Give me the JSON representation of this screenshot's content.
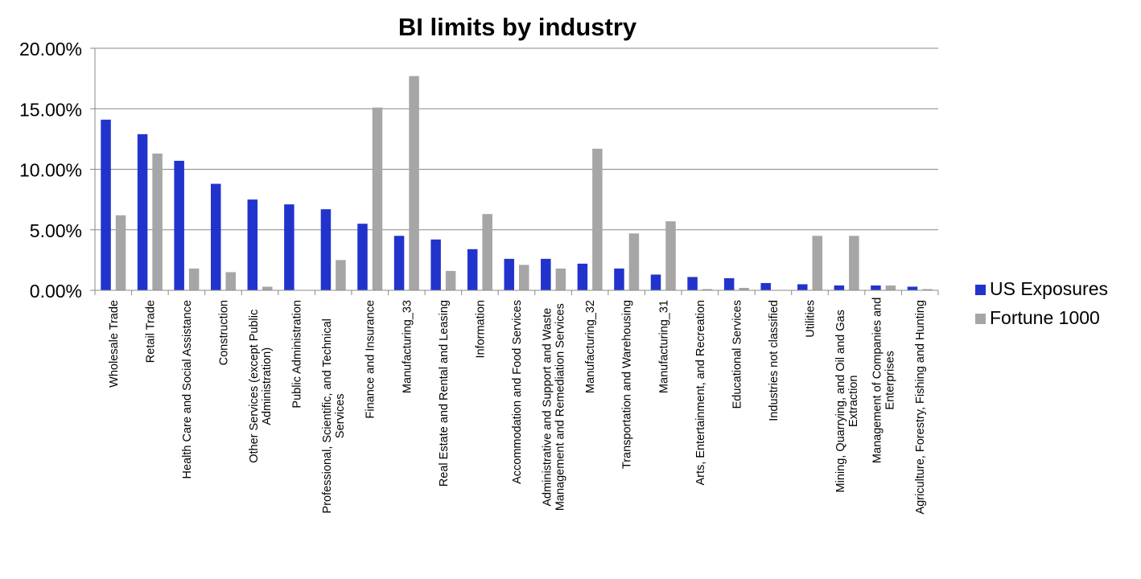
{
  "chart_data": {
    "type": "bar",
    "title": "BI limits by industry",
    "xlabel": "",
    "ylabel": "",
    "ylim": [
      0,
      0.2
    ],
    "yticks": [
      0,
      0.05,
      0.1,
      0.15,
      0.2
    ],
    "ytick_labels": [
      "0.00%",
      "5.00%",
      "10.00%",
      "15.00%",
      "20.00%"
    ],
    "grid": true,
    "legend_position": "right",
    "categories": [
      "Wholesale Trade",
      "Retail Trade",
      "Health Care and Social Assistance",
      "Construction",
      "Other Services (except Public Administration)",
      "Public Administration",
      "Professional, Scientific, and Technical Services",
      "Finance and Insurance",
      "Manufacturing_33",
      "Real Estate and Rental and Leasing",
      "Information",
      "Accommodation and Food Services",
      "Administrative and Support and Waste Management and Remediation Services",
      "Manufacturing_32",
      "Transportation and Warehousing",
      "Manufacturing_31",
      "Arts, Entertainment, and Recreation",
      "Educational Services",
      "Industries not classified",
      "Utilities",
      "Mining, Quarrying, and Oil and Gas Extraction",
      "Management of Companies and Enterprises",
      "Agriculture, Forestry, Fishing and Hunting"
    ],
    "category_label_lines": [
      [
        "Wholesale Trade"
      ],
      [
        "Retail Trade"
      ],
      [
        "Health Care and Social Assistance"
      ],
      [
        "Construction"
      ],
      [
        "Other Services (except Public",
        "Administration)"
      ],
      [
        "Public Administration"
      ],
      [
        "Professional, Scientific, and Technical",
        "Services"
      ],
      [
        "Finance and Insurance"
      ],
      [
        "Manufacturing_33"
      ],
      [
        "Real Estate and Rental and Leasing"
      ],
      [
        "Information"
      ],
      [
        "Accommodation and Food Services"
      ],
      [
        "Administrative and Support and Waste",
        "Management and Remediation Services"
      ],
      [
        "Manufacturing_32"
      ],
      [
        "Transportation and Warehousing"
      ],
      [
        "Manufacturing_31"
      ],
      [
        "Arts, Entertainment, and Recreation"
      ],
      [
        "Educational Services"
      ],
      [
        "Industries not classified"
      ],
      [
        "Utilities"
      ],
      [
        "Mining, Quarrying, and Oil and Gas",
        "Extraction"
      ],
      [
        "Management of Companies and",
        "Enterprises"
      ],
      [
        "Agriculture, Forestry, Fishing and Hunting"
      ]
    ],
    "series": [
      {
        "name": "US Exposures",
        "color": "#2233CC",
        "values": [
          0.141,
          0.129,
          0.107,
          0.088,
          0.075,
          0.071,
          0.067,
          0.055,
          0.045,
          0.042,
          0.034,
          0.026,
          0.026,
          0.022,
          0.018,
          0.013,
          0.011,
          0.01,
          0.006,
          0.005,
          0.004,
          0.004,
          0.003
        ]
      },
      {
        "name": "Fortune 1000",
        "color": "#A6A6A6",
        "values": [
          0.062,
          0.113,
          0.018,
          0.015,
          0.003,
          0.0,
          0.025,
          0.151,
          0.177,
          0.016,
          0.063,
          0.021,
          0.018,
          0.117,
          0.047,
          0.057,
          0.001,
          0.002,
          0.0,
          0.045,
          0.045,
          0.004,
          0.001
        ]
      }
    ]
  }
}
